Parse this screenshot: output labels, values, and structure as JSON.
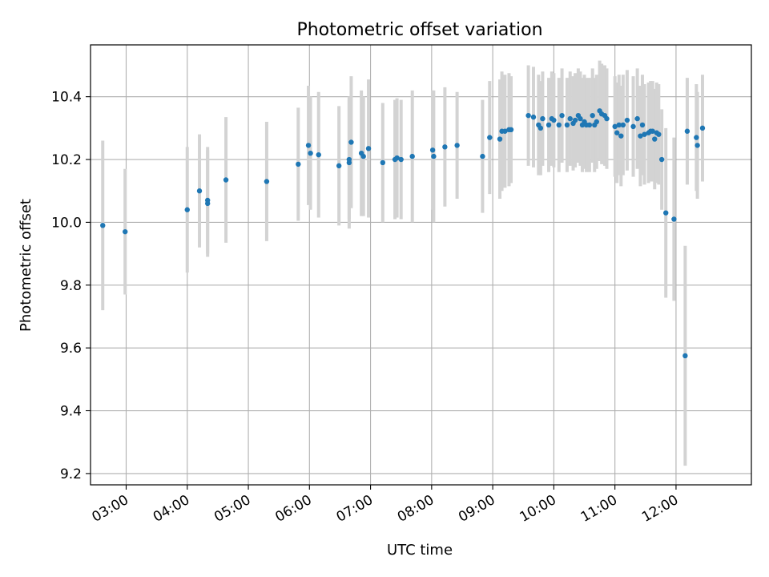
{
  "chart_data": {
    "type": "scatter",
    "title": "Photometric offset variation",
    "xlabel": "UTC time",
    "ylabel": "Photometric offset",
    "x_unit": "UTC time (HH:MM)",
    "xlim": [
      "02:25",
      "13:14"
    ],
    "ylim": [
      9.164,
      10.565
    ],
    "xticks": [
      "03:00",
      "04:00",
      "05:00",
      "06:00",
      "07:00",
      "08:00",
      "09:00",
      "10:00",
      "11:00",
      "12:00"
    ],
    "yticks": [
      9.2,
      9.4,
      9.6,
      9.8,
      10.0,
      10.2,
      10.4
    ],
    "grid": true,
    "colors": {
      "point": "#1f77b4",
      "errorbar": "#d3d3d3",
      "grid": "#b0b0b0"
    },
    "series": [
      {
        "x": [
          "02:37",
          "02:59",
          "04:00",
          "04:12",
          "04:20",
          "04:20",
          "04:38",
          "05:18",
          "05:49",
          "05:59",
          "06:01",
          "06:09",
          "06:29",
          "06:39",
          "06:39",
          "06:41",
          "06:51",
          "06:53",
          "06:58",
          "07:12",
          "07:24",
          "07:26",
          "07:30",
          "07:41",
          "08:01",
          "08:02",
          "08:13",
          "08:25",
          "08:50",
          "08:57",
          "09:07",
          "09:09",
          "09:12",
          "09:16",
          "09:18",
          "09:35",
          "09:40",
          "09:45",
          "09:47",
          "09:49",
          "09:55",
          "09:58",
          "10:00",
          "10:05",
          "10:08",
          "10:13",
          "10:16",
          "10:19",
          "10:21",
          "10:24",
          "10:26",
          "10:28",
          "10:30",
          "10:32",
          "10:35",
          "10:38",
          "10:40",
          "10:42",
          "10:45",
          "10:47",
          "10:50",
          "10:52",
          "11:00",
          "11:02",
          "11:04",
          "11:06",
          "11:08",
          "11:12",
          "11:18",
          "11:22",
          "11:25",
          "11:27",
          "11:29",
          "11:33",
          "11:35",
          "11:37",
          "11:39",
          "11:41",
          "11:43",
          "11:46",
          "11:50",
          "11:58",
          "12:09",
          "12:11",
          "12:20",
          "12:21",
          "12:26"
        ],
        "y": [
          9.99,
          9.97,
          10.04,
          10.1,
          10.06,
          10.07,
          10.135,
          10.13,
          10.185,
          10.245,
          10.22,
          10.215,
          10.18,
          10.19,
          10.2,
          10.255,
          10.22,
          10.21,
          10.235,
          10.19,
          10.2,
          10.205,
          10.2,
          10.21,
          10.23,
          10.21,
          10.24,
          10.245,
          10.21,
          10.27,
          10.265,
          10.29,
          10.29,
          10.295,
          10.295,
          10.34,
          10.335,
          10.31,
          10.3,
          10.33,
          10.31,
          10.33,
          10.325,
          10.31,
          10.34,
          10.31,
          10.33,
          10.315,
          10.325,
          10.34,
          10.33,
          10.31,
          10.32,
          10.31,
          10.31,
          10.34,
          10.31,
          10.32,
          10.355,
          10.345,
          10.34,
          10.33,
          10.305,
          10.285,
          10.31,
          10.275,
          10.31,
          10.325,
          10.305,
          10.33,
          10.275,
          10.31,
          10.28,
          10.285,
          10.29,
          10.29,
          10.265,
          10.285,
          10.28,
          10.2,
          10.03,
          10.01,
          9.575,
          10.29,
          10.27,
          10.245,
          10.3
        ],
        "yerr": [
          0.27,
          0.2,
          0.2,
          0.18,
          0.17,
          0.17,
          0.2,
          0.19,
          0.18,
          0.19,
          0.18,
          0.2,
          0.19,
          0.21,
          0.19,
          0.21,
          0.2,
          0.19,
          0.22,
          0.19,
          0.19,
          0.19,
          0.19,
          0.21,
          0.19,
          0.21,
          0.19,
          0.17,
          0.18,
          0.18,
          0.19,
          0.19,
          0.18,
          0.18,
          0.17,
          0.16,
          0.16,
          0.16,
          0.15,
          0.15,
          0.15,
          0.15,
          0.15,
          0.15,
          0.15,
          0.15,
          0.15,
          0.15,
          0.15,
          0.15,
          0.15,
          0.15,
          0.15,
          0.15,
          0.15,
          0.15,
          0.15,
          0.15,
          0.16,
          0.16,
          0.16,
          0.16,
          0.16,
          0.16,
          0.16,
          0.16,
          0.16,
          0.16,
          0.16,
          0.16,
          0.16,
          0.16,
          0.16,
          0.16,
          0.16,
          0.16,
          0.16,
          0.16,
          0.16,
          0.16,
          0.27,
          0.26,
          0.35,
          0.17,
          0.17,
          0.17,
          0.17
        ]
      }
    ]
  }
}
